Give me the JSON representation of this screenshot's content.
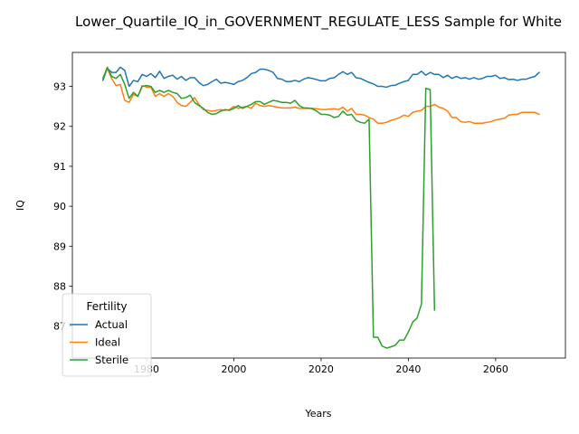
{
  "chart_data": {
    "type": "line",
    "title": "Lower_Quartile_IQ_in_GOVERNMENT_REGULATE_LESS Sample for White",
    "xlabel": "Years",
    "ylabel": "IQ",
    "xlim": [
      1963,
      2076
    ],
    "ylim": [
      86.2,
      93.85
    ],
    "xticks": [
      1980,
      2000,
      2020,
      2040,
      2060
    ],
    "yticks": [
      87,
      88,
      89,
      90,
      91,
      92,
      93
    ],
    "grid": false,
    "legend": {
      "title": "Fertility",
      "placement": "lower-left"
    },
    "series": [
      {
        "name": "Actual",
        "color": "#1f77b4",
        "x": [
          1970,
          1971,
          1972,
          1973,
          1974,
          1975,
          1976,
          1977,
          1978,
          1979,
          1980,
          1981,
          1982,
          1983,
          1984,
          1985,
          1986,
          1987,
          1988,
          1989,
          1990,
          1991,
          1992,
          1993,
          1994,
          1995,
          1996,
          1997,
          1998,
          1999,
          2000,
          2001,
          2002,
          2003,
          2004,
          2005,
          2006,
          2007,
          2008,
          2009,
          2010,
          2011,
          2012,
          2013,
          2014,
          2015,
          2016,
          2017,
          2018,
          2019,
          2020,
          2021,
          2022,
          2023,
          2024,
          2025,
          2026,
          2027,
          2028,
          2029,
          2030,
          2031,
          2032,
          2033,
          2034,
          2035,
          2036,
          2037,
          2038,
          2039,
          2040,
          2041,
          2042,
          2043,
          2044,
          2045,
          2046,
          2047,
          2048,
          2049,
          2050,
          2051,
          2052,
          2053,
          2054,
          2055,
          2056,
          2057,
          2058,
          2059,
          2060,
          2061,
          2062,
          2063,
          2064,
          2065,
          2066,
          2067,
          2068,
          2069,
          2070
        ],
        "y": [
          93.15,
          93.45,
          93.35,
          93.35,
          93.48,
          93.4,
          93.0,
          93.15,
          93.12,
          93.3,
          93.25,
          93.32,
          93.22,
          93.38,
          93.2,
          93.25,
          93.28,
          93.18,
          93.25,
          93.15,
          93.22,
          93.22,
          93.1,
          93.02,
          93.05,
          93.12,
          93.18,
          93.08,
          93.1,
          93.08,
          93.05,
          93.12,
          93.15,
          93.22,
          93.32,
          93.35,
          93.43,
          93.43,
          93.4,
          93.35,
          93.2,
          93.18,
          93.12,
          93.12,
          93.15,
          93.12,
          93.18,
          93.22,
          93.2,
          93.17,
          93.14,
          93.14,
          93.2,
          93.22,
          93.3,
          93.37,
          93.3,
          93.35,
          93.22,
          93.2,
          93.15,
          93.1,
          93.06,
          93.0,
          93.0,
          92.98,
          93.02,
          93.03,
          93.08,
          93.12,
          93.15,
          93.3,
          93.3,
          93.38,
          93.28,
          93.35,
          93.3,
          93.3,
          93.22,
          93.28,
          93.2,
          93.25,
          93.2,
          93.22,
          93.18,
          93.22,
          93.18,
          93.2,
          93.25,
          93.25,
          93.28,
          93.2,
          93.22,
          93.17,
          93.18,
          93.15,
          93.18,
          93.18,
          93.22,
          93.25,
          93.35
        ]
      },
      {
        "name": "Ideal",
        "color": "#ff7f0e",
        "x": [
          1970,
          1971,
          1972,
          1973,
          1974,
          1975,
          1976,
          1977,
          1978,
          1979,
          1980,
          1981,
          1982,
          1983,
          1984,
          1985,
          1986,
          1987,
          1988,
          1989,
          1990,
          1991,
          1992,
          1993,
          1994,
          1995,
          1996,
          1997,
          1998,
          1999,
          2000,
          2001,
          2002,
          2003,
          2004,
          2005,
          2006,
          2007,
          2008,
          2009,
          2010,
          2011,
          2012,
          2013,
          2014,
          2015,
          2016,
          2017,
          2018,
          2019,
          2020,
          2021,
          2022,
          2023,
          2024,
          2025,
          2026,
          2027,
          2028,
          2029,
          2030,
          2031,
          2032,
          2033,
          2034,
          2035,
          2036,
          2037,
          2038,
          2039,
          2040,
          2041,
          2042,
          2043,
          2044,
          2045,
          2046,
          2047,
          2048,
          2049,
          2050,
          2051,
          2052,
          2053,
          2054,
          2055,
          2056,
          2057,
          2058,
          2059,
          2060,
          2061,
          2062,
          2063,
          2064,
          2065,
          2066,
          2067,
          2068,
          2069,
          2070
        ],
        "y": [
          93.2,
          93.45,
          93.2,
          93.02,
          93.05,
          92.65,
          92.6,
          92.8,
          92.75,
          93.02,
          92.98,
          92.98,
          92.75,
          92.82,
          92.75,
          92.82,
          92.75,
          92.6,
          92.52,
          92.5,
          92.6,
          92.72,
          92.55,
          92.42,
          92.4,
          92.38,
          92.4,
          92.42,
          92.4,
          92.42,
          92.5,
          92.45,
          92.48,
          92.5,
          92.45,
          92.58,
          92.52,
          92.5,
          92.52,
          92.5,
          92.48,
          92.46,
          92.46,
          92.46,
          92.48,
          92.45,
          92.45,
          92.45,
          92.45,
          92.44,
          92.42,
          92.42,
          92.43,
          92.44,
          92.42,
          92.48,
          92.38,
          92.45,
          92.3,
          92.3,
          92.28,
          92.22,
          92.18,
          92.08,
          92.08,
          92.1,
          92.15,
          92.18,
          92.22,
          92.28,
          92.25,
          92.35,
          92.38,
          92.4,
          92.5,
          92.5,
          92.55,
          92.48,
          92.45,
          92.38,
          92.22,
          92.22,
          92.12,
          92.1,
          92.12,
          92.08,
          92.08,
          92.08,
          92.1,
          92.12,
          92.16,
          92.18,
          92.2,
          92.28,
          92.3,
          92.3,
          92.35,
          92.35,
          92.35,
          92.35,
          92.3
        ]
      },
      {
        "name": "Sterile",
        "color": "#2ca02c",
        "x": [
          1970,
          1971,
          1972,
          1973,
          1974,
          1975,
          1976,
          1977,
          1978,
          1979,
          1980,
          1981,
          1982,
          1983,
          1984,
          1985,
          1986,
          1987,
          1988,
          1989,
          1990,
          1991,
          1992,
          1993,
          1994,
          1995,
          1996,
          1997,
          1998,
          1999,
          2000,
          2001,
          2002,
          2003,
          2004,
          2005,
          2006,
          2007,
          2008,
          2009,
          2010,
          2011,
          2012,
          2013,
          2014,
          2015,
          2016,
          2017,
          2018,
          2019,
          2020,
          2021,
          2022,
          2023,
          2024,
          2025,
          2026,
          2027,
          2028,
          2029,
          2030,
          2031,
          2032,
          2033,
          2034,
          2035,
          2036,
          2037,
          2038,
          2039,
          2040,
          2041,
          2042,
          2043,
          2044,
          2045,
          2046
        ],
        "y": [
          93.2,
          93.48,
          93.25,
          93.2,
          93.3,
          93.05,
          92.7,
          92.85,
          92.75,
          93.0,
          93.02,
          93.0,
          92.85,
          92.9,
          92.85,
          92.9,
          92.85,
          92.82,
          92.7,
          92.72,
          92.78,
          92.6,
          92.52,
          92.45,
          92.35,
          92.3,
          92.32,
          92.38,
          92.42,
          92.4,
          92.45,
          92.52,
          92.45,
          92.5,
          92.55,
          92.62,
          92.62,
          92.55,
          92.6,
          92.65,
          92.63,
          92.6,
          92.6,
          92.58,
          92.65,
          92.52,
          92.46,
          92.46,
          92.44,
          92.38,
          92.3,
          92.3,
          92.28,
          92.22,
          92.25,
          92.38,
          92.28,
          92.3,
          92.15,
          92.1,
          92.08,
          92.18,
          86.72,
          86.72,
          86.5,
          86.45,
          86.48,
          86.52,
          86.65,
          86.65,
          86.85,
          87.1,
          87.2,
          87.55,
          92.95,
          92.92,
          87.4
        ]
      }
    ]
  }
}
